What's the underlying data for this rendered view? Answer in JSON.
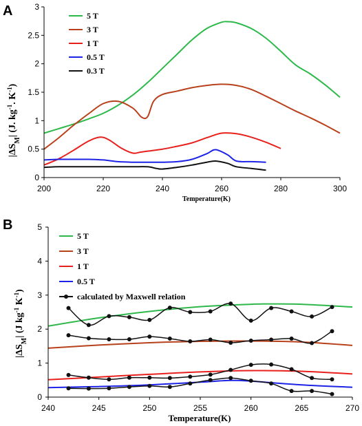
{
  "chart_data": [
    {
      "panel_label": "A",
      "type": "line",
      "xlabel": "Temperature(K)",
      "ylabel": "|ΔS",
      "ylabel_sub": "M",
      "ylabel_tail": "| (J. kg",
      "ylabel_sup1": "-1",
      "ylabel_mid": ". K",
      "ylabel_sup2": "-1",
      "ylabel_end": ")",
      "xlim": [
        200,
        300
      ],
      "ylim": [
        0,
        3
      ],
      "xticks": [
        "200",
        "220",
        "240",
        "260",
        "280",
        "300"
      ],
      "yticks": [
        "0",
        "0.5",
        "1",
        "1.5",
        "2",
        "2.5",
        "3"
      ],
      "legend_position": "top-left",
      "series": [
        {
          "name": "5 T",
          "color": "#2db84a",
          "x": [
            200,
            205,
            210,
            215,
            220,
            225,
            230,
            235,
            240,
            245,
            250,
            255,
            260,
            262,
            265,
            270,
            275,
            280,
            285,
            290,
            295,
            300
          ],
          "y": [
            0.78,
            0.86,
            0.94,
            1.03,
            1.13,
            1.27,
            1.45,
            1.67,
            1.92,
            2.17,
            2.42,
            2.62,
            2.73,
            2.74,
            2.72,
            2.62,
            2.45,
            2.22,
            1.98,
            1.82,
            1.63,
            1.41
          ]
        },
        {
          "name": "3 T",
          "color": "#b8401a",
          "x": [
            200,
            205,
            210,
            215,
            220,
            225,
            230,
            233,
            235,
            237,
            240,
            245,
            250,
            255,
            260,
            265,
            270,
            275,
            280,
            285,
            290,
            295,
            300
          ],
          "y": [
            0.5,
            0.7,
            0.92,
            1.12,
            1.3,
            1.34,
            1.22,
            1.06,
            1.07,
            1.34,
            1.46,
            1.52,
            1.58,
            1.62,
            1.64,
            1.62,
            1.55,
            1.43,
            1.3,
            1.17,
            1.05,
            0.92,
            0.78
          ]
        },
        {
          "name": "1 T",
          "color": "#e8201c",
          "x": [
            200,
            205,
            210,
            215,
            219,
            222,
            226,
            230,
            233,
            240,
            245,
            250,
            255,
            260,
            265,
            270,
            275,
            280
          ],
          "y": [
            0.22,
            0.33,
            0.48,
            0.64,
            0.71,
            0.66,
            0.52,
            0.43,
            0.45,
            0.5,
            0.55,
            0.61,
            0.7,
            0.78,
            0.77,
            0.71,
            0.62,
            0.51
          ]
        },
        {
          "name": "0.5 T",
          "color": "#1c22e6",
          "x": [
            200,
            205,
            210,
            215,
            220,
            225,
            230,
            235,
            240,
            245,
            250,
            255,
            258,
            262,
            265,
            270,
            275
          ],
          "y": [
            0.31,
            0.32,
            0.32,
            0.32,
            0.31,
            0.28,
            0.27,
            0.27,
            0.27,
            0.28,
            0.32,
            0.42,
            0.49,
            0.4,
            0.29,
            0.28,
            0.27
          ]
        },
        {
          "name": "0.3 T",
          "color": "#111111",
          "x": [
            200,
            205,
            210,
            215,
            220,
            225,
            230,
            235,
            238,
            240,
            245,
            250,
            255,
            258,
            262,
            265,
            270,
            275
          ],
          "y": [
            0.18,
            0.19,
            0.19,
            0.19,
            0.19,
            0.19,
            0.19,
            0.19,
            0.16,
            0.15,
            0.18,
            0.22,
            0.27,
            0.29,
            0.25,
            0.19,
            0.16,
            0.13
          ]
        }
      ]
    },
    {
      "panel_label": "B",
      "type": "line",
      "xlabel": "Temperature(K)",
      "ylabel": "|ΔS",
      "ylabel_sub": "M",
      "ylabel_tail": "| (J kg",
      "ylabel_sup1": "-1",
      "ylabel_mid": " K",
      "ylabel_sup2": "-1",
      "ylabel_end": ")",
      "xlim": [
        240,
        270
      ],
      "ylim": [
        0,
        5
      ],
      "xticks": [
        "240",
        "245",
        "250",
        "255",
        "260",
        "265",
        "270"
      ],
      "yticks": [
        "0",
        "1",
        "2",
        "3",
        "4",
        "5"
      ],
      "legend_position": "top-left",
      "series": [
        {
          "name": "5 T",
          "color": "#2db84a",
          "x": [
            240,
            245,
            250,
            255,
            260,
            262,
            265,
            270
          ],
          "y": [
            2.09,
            2.33,
            2.52,
            2.66,
            2.73,
            2.74,
            2.73,
            2.65
          ]
        },
        {
          "name": "3 T",
          "color": "#b8401a",
          "x": [
            240,
            245,
            250,
            255,
            260,
            265,
            270
          ],
          "y": [
            1.44,
            1.53,
            1.6,
            1.64,
            1.65,
            1.62,
            1.52
          ]
        },
        {
          "name": "1 T",
          "color": "#e8201c",
          "x": [
            240,
            245,
            250,
            255,
            260,
            265,
            270
          ],
          "y": [
            0.51,
            0.59,
            0.67,
            0.74,
            0.78,
            0.76,
            0.68
          ]
        },
        {
          "name": "0.5 T",
          "color": "#1c22e6",
          "x": [
            240,
            245,
            250,
            255,
            258,
            260,
            265,
            270
          ],
          "y": [
            0.28,
            0.31,
            0.36,
            0.44,
            0.49,
            0.47,
            0.36,
            0.29
          ]
        }
      ],
      "markers": {
        "name": "calculated by Maxwell relation",
        "color": "#111111",
        "x": [
          242,
          244,
          246,
          248,
          250,
          252,
          254,
          256,
          258,
          260,
          262,
          264,
          266,
          268
        ],
        "sets": [
          [
            2.62,
            2.12,
            2.38,
            2.35,
            2.27,
            2.63,
            2.5,
            2.52,
            2.75,
            2.25,
            2.62,
            2.52,
            2.37,
            2.65
          ],
          [
            1.82,
            1.73,
            1.7,
            1.7,
            1.78,
            1.72,
            1.64,
            1.69,
            1.6,
            1.66,
            1.69,
            1.72,
            1.59,
            1.94
          ],
          [
            0.65,
            0.57,
            0.52,
            0.57,
            0.57,
            0.56,
            0.6,
            0.66,
            0.8,
            0.95,
            0.96,
            0.82,
            0.56,
            0.52
          ],
          [
            0.26,
            0.25,
            0.26,
            0.3,
            0.33,
            0.3,
            0.4,
            0.5,
            0.56,
            0.48,
            0.4,
            0.18,
            0.18,
            0.09
          ]
        ]
      }
    }
  ]
}
